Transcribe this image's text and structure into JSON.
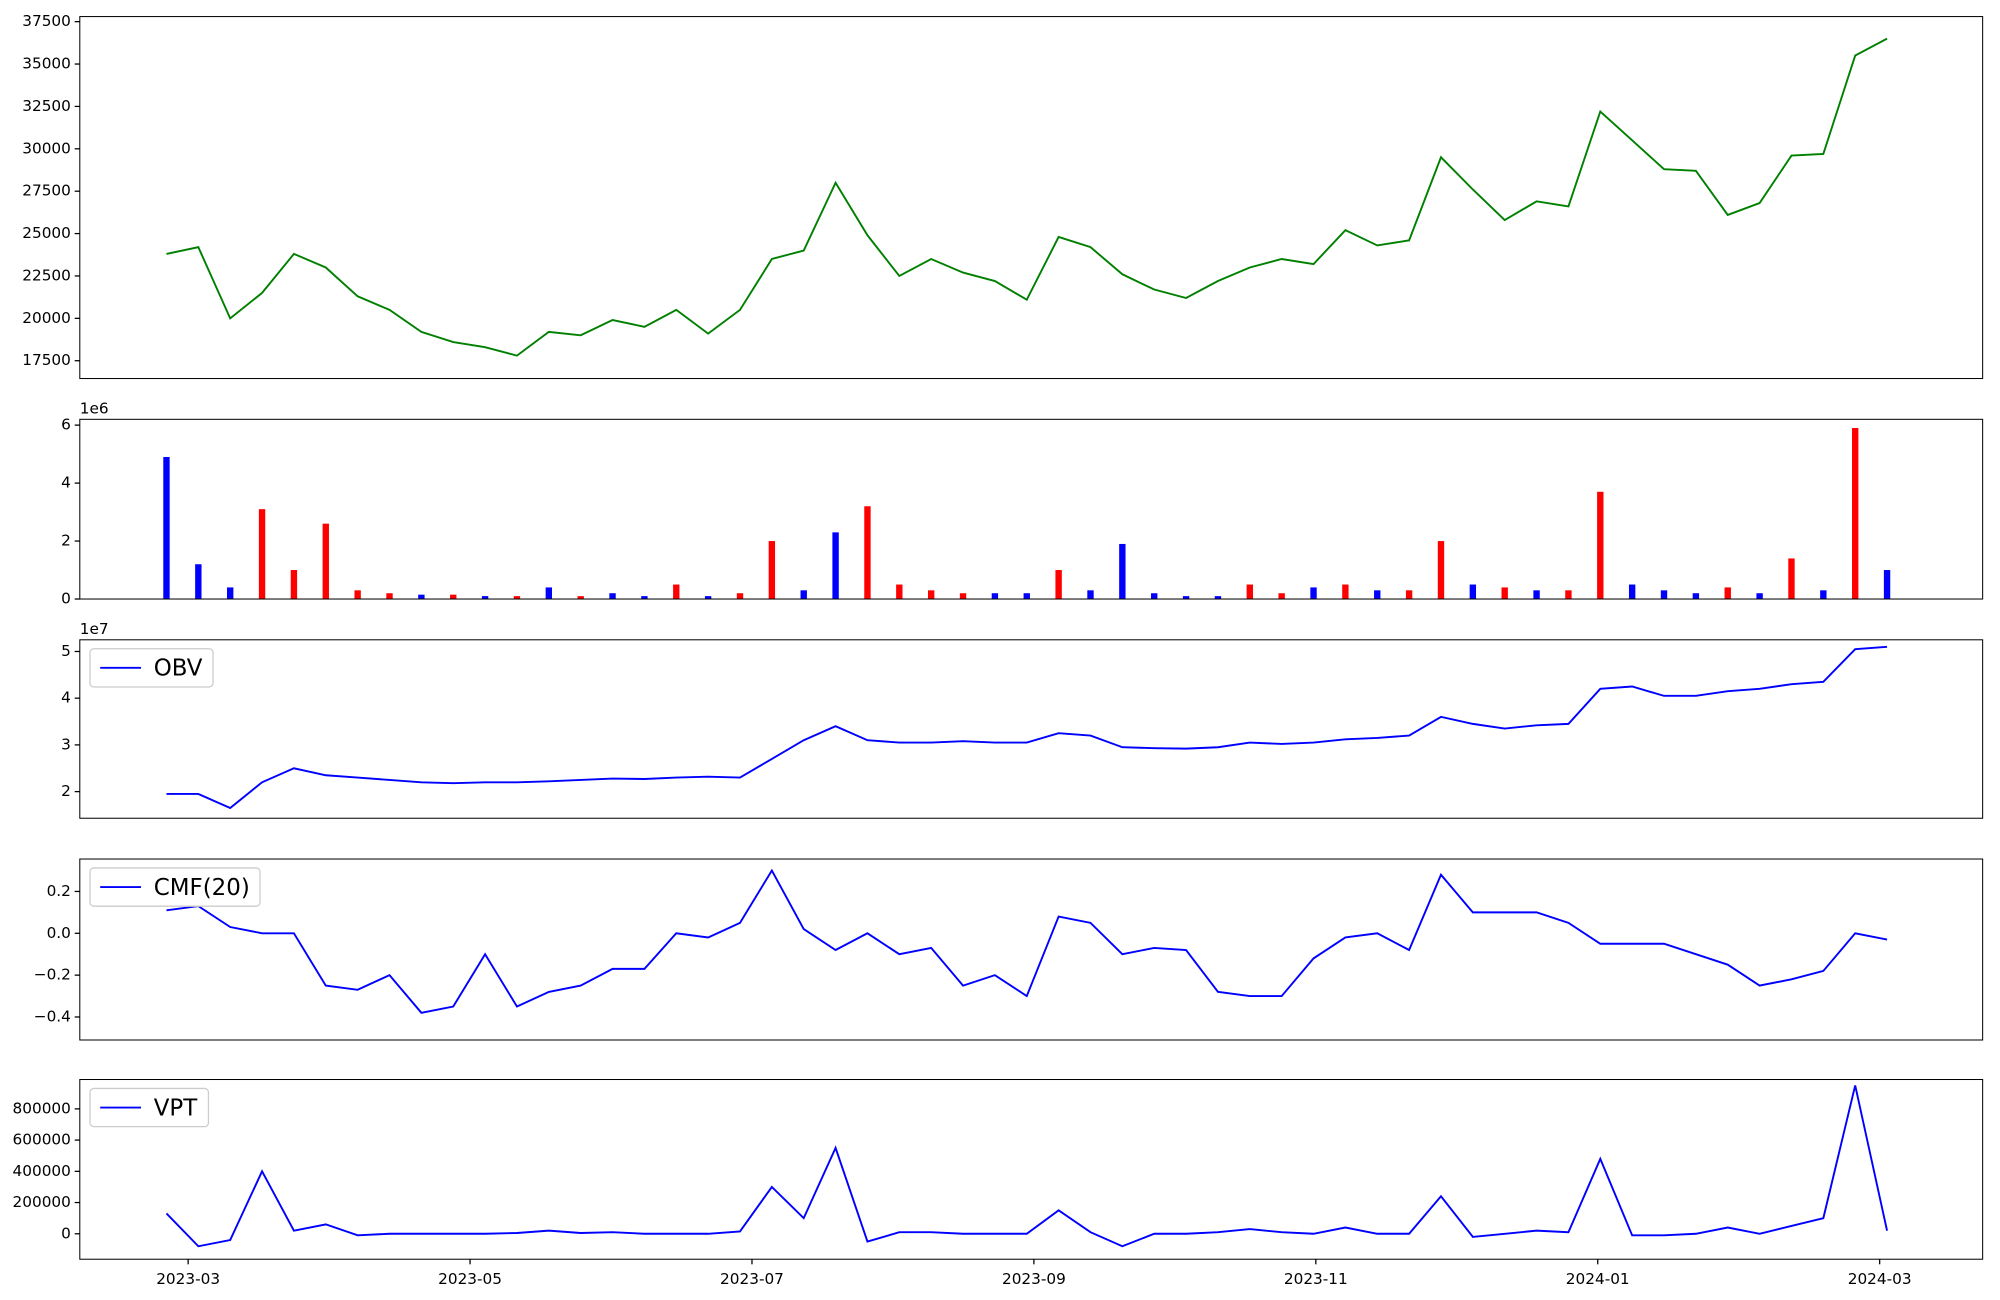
{
  "chart_data": [
    {
      "type": "line",
      "color": "#008000",
      "values": [
        23800,
        24200,
        20000,
        21500,
        23800,
        23000,
        21300,
        20500,
        19200,
        18600,
        18300,
        17800,
        19200,
        19000,
        19900,
        19500,
        20500,
        19100,
        20500,
        23500,
        24000,
        28000,
        24900,
        22500,
        23500,
        22700,
        22200,
        21100,
        24800,
        24200,
        22600,
        21700,
        21200,
        22200,
        23000,
        23500,
        23200,
        25200,
        24300,
        24600,
        29500,
        27600,
        25800,
        26900,
        26600,
        32200,
        30500,
        28800,
        28700,
        26100,
        26800,
        29600,
        29700,
        35500,
        36500
      ],
      "ylim": [
        16450,
        37800
      ],
      "yticks": [
        17500,
        20000,
        22500,
        25000,
        27500,
        30000,
        32500,
        35000,
        37500
      ]
    },
    {
      "type": "bar",
      "scale_label": "1e6",
      "values": [
        4.9,
        1.2,
        0.4,
        3.1,
        1.0,
        2.6,
        0.3,
        0.2,
        0.15,
        0.15,
        0.1,
        0.1,
        0.4,
        0.1,
        0.2,
        0.1,
        0.5,
        0.1,
        0.2,
        2.0,
        0.3,
        2.3,
        3.2,
        0.5,
        0.3,
        0.2,
        0.2,
        0.2,
        1.0,
        0.3,
        1.9,
        0.2,
        0.1,
        0.1,
        0.5,
        0.2,
        0.4,
        0.5,
        0.3,
        0.3,
        2.0,
        0.5,
        0.4,
        0.3,
        0.3,
        3.7,
        0.5,
        0.3,
        0.2,
        0.4,
        0.2,
        1.4,
        0.3,
        5.9,
        1.0
      ],
      "colors": [
        "#0000ff",
        "#0000ff",
        "#0000ff",
        "#ff0000",
        "#ff0000",
        "#ff0000",
        "#ff0000",
        "#ff0000",
        "#0000ff",
        "#ff0000",
        "#0000ff",
        "#ff0000",
        "#0000ff",
        "#ff0000",
        "#0000ff",
        "#0000ff",
        "#ff0000",
        "#0000ff",
        "#ff0000",
        "#ff0000",
        "#0000ff",
        "#0000ff",
        "#ff0000",
        "#ff0000",
        "#ff0000",
        "#ff0000",
        "#0000ff",
        "#0000ff",
        "#ff0000",
        "#0000ff",
        "#0000ff",
        "#0000ff",
        "#0000ff",
        "#0000ff",
        "#ff0000",
        "#ff0000",
        "#0000ff",
        "#ff0000",
        "#0000ff",
        "#ff0000",
        "#ff0000",
        "#0000ff",
        "#ff0000",
        "#0000ff",
        "#ff0000",
        "#ff0000",
        "#0000ff",
        "#0000ff",
        "#0000ff",
        "#ff0000",
        "#0000ff",
        "#ff0000",
        "#0000ff",
        "#ff0000",
        "#0000ff"
      ],
      "ylim": [
        0,
        6.2
      ],
      "yticks": [
        0,
        2,
        4,
        6
      ]
    },
    {
      "type": "line",
      "scale_label": "1e7",
      "legend": "upper left",
      "series": [
        {
          "name": "OBV",
          "color": "#0000ff",
          "values": [
            1.95,
            1.95,
            1.65,
            2.2,
            2.5,
            2.35,
            2.3,
            2.25,
            2.2,
            2.18,
            2.2,
            2.2,
            2.22,
            2.25,
            2.28,
            2.27,
            2.3,
            2.32,
            2.3,
            2.7,
            3.1,
            3.4,
            3.1,
            3.05,
            3.05,
            3.08,
            3.05,
            3.05,
            3.25,
            3.2,
            2.95,
            2.93,
            2.92,
            2.95,
            3.05,
            3.02,
            3.05,
            3.12,
            3.15,
            3.2,
            3.6,
            3.45,
            3.35,
            3.42,
            3.45,
            4.2,
            4.25,
            4.05,
            4.05,
            4.15,
            4.2,
            4.3,
            4.35,
            5.05,
            5.1
          ]
        }
      ],
      "ylim": [
        1.43,
        5.25
      ],
      "yticks": [
        2,
        3,
        4,
        5
      ]
    },
    {
      "type": "line",
      "legend": "upper left",
      "series": [
        {
          "name": "CMF(20)",
          "color": "#0000ff",
          "values": [
            0.11,
            0.13,
            0.03,
            0.0,
            0.0,
            -0.25,
            -0.27,
            -0.2,
            -0.38,
            -0.35,
            -0.1,
            -0.35,
            -0.28,
            -0.25,
            -0.17,
            -0.17,
            0.0,
            -0.02,
            0.05,
            0.3,
            0.02,
            -0.08,
            0.0,
            -0.1,
            -0.07,
            -0.25,
            -0.2,
            -0.3,
            0.08,
            0.05,
            -0.1,
            -0.07,
            -0.08,
            -0.28,
            -0.3,
            -0.3,
            -0.12,
            -0.02,
            0.0,
            -0.08,
            0.28,
            0.1,
            0.1,
            0.1,
            0.05,
            -0.05,
            -0.05,
            -0.05,
            -0.1,
            -0.15,
            -0.25,
            -0.22,
            -0.18,
            0.0,
            -0.03
          ]
        }
      ],
      "ylim": [
        -0.51,
        0.355
      ],
      "yticks": [
        {
          "value": -0.4,
          "label": "−0.4"
        },
        {
          "value": -0.2,
          "label": "−0.2"
        },
        {
          "value": 0,
          "label": "0.0"
        },
        0.2
      ]
    },
    {
      "type": "line",
      "legend": "upper left",
      "series": [
        {
          "name": "VPT",
          "color": "#0000ff",
          "values": [
            130000,
            -80000,
            -40000,
            400000,
            20000,
            60000,
            -10000,
            0,
            0,
            0,
            0,
            5000,
            20000,
            5000,
            10000,
            0,
            0,
            0,
            15000,
            300000,
            100000,
            550000,
            -50000,
            10000,
            10000,
            0,
            0,
            0,
            150000,
            10000,
            -80000,
            0,
            0,
            10000,
            30000,
            10000,
            0,
            40000,
            0,
            0,
            240000,
            -20000,
            0,
            20000,
            10000,
            480000,
            -10000,
            -10000,
            0,
            40000,
            0,
            50000,
            100000,
            950000,
            20000
          ]
        }
      ],
      "ylim": [
        -163000,
        988000
      ],
      "yticks": [
        0,
        200000,
        400000,
        600000,
        800000
      ],
      "xticks": [
        "2023-03",
        "2023-05",
        "2023-07",
        "2023-09",
        "2023-11",
        "2024-01",
        "2024-03"
      ]
    }
  ]
}
